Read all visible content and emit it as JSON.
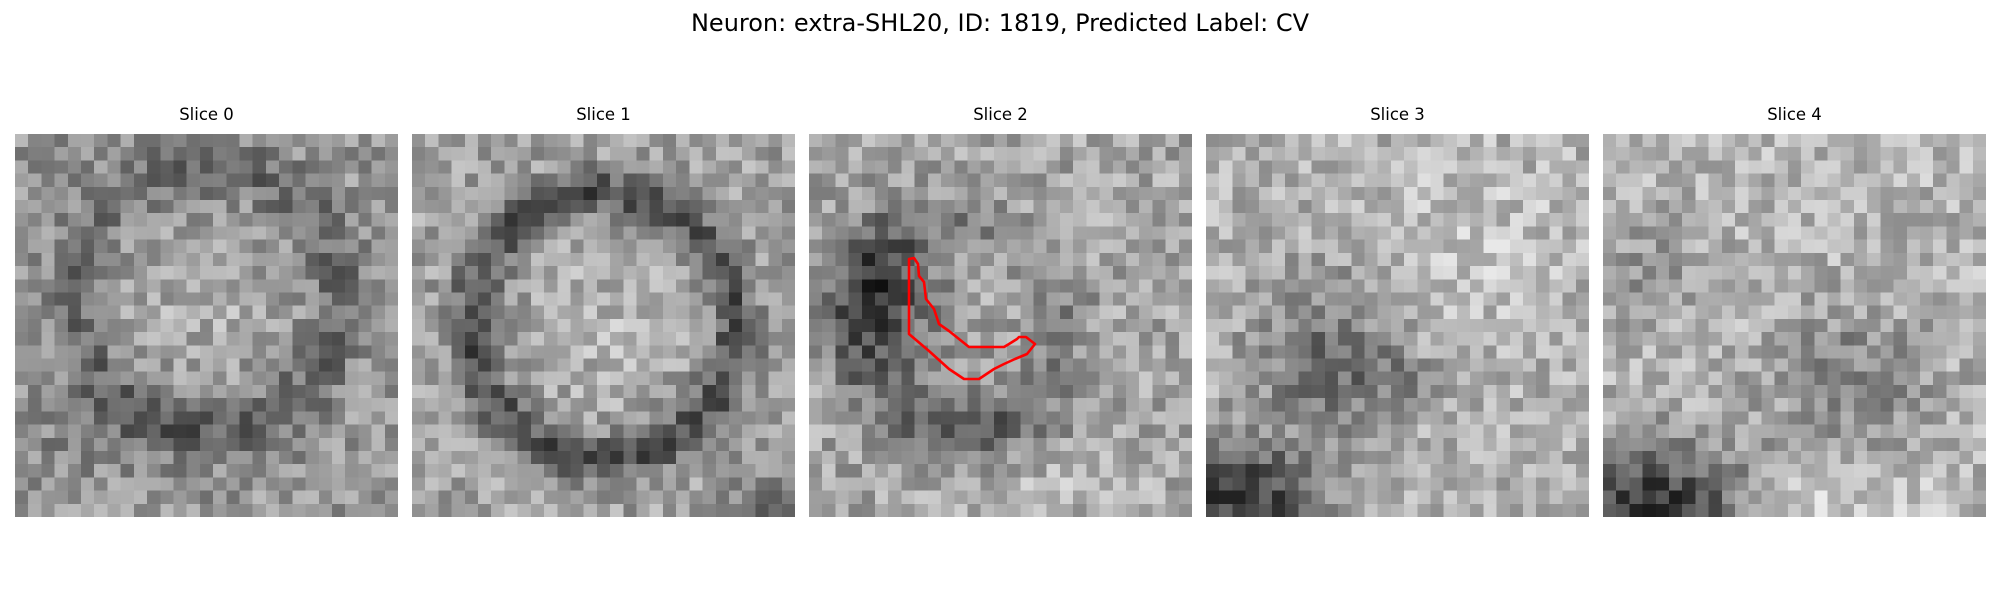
{
  "figure": {
    "title": "Neuron: extra-SHL20, ID: 1819, Predicted Label: CV"
  },
  "panels": [
    {
      "title": "Slice 0"
    },
    {
      "title": "Slice 1"
    },
    {
      "title": "Slice 2"
    },
    {
      "title": "Slice 3"
    },
    {
      "title": "Slice 4"
    }
  ],
  "image": {
    "colormap": "grayscale",
    "grid_size": 29
  },
  "contour": {
    "on_slice": "Slice 2",
    "color": "#ff0000"
  }
}
